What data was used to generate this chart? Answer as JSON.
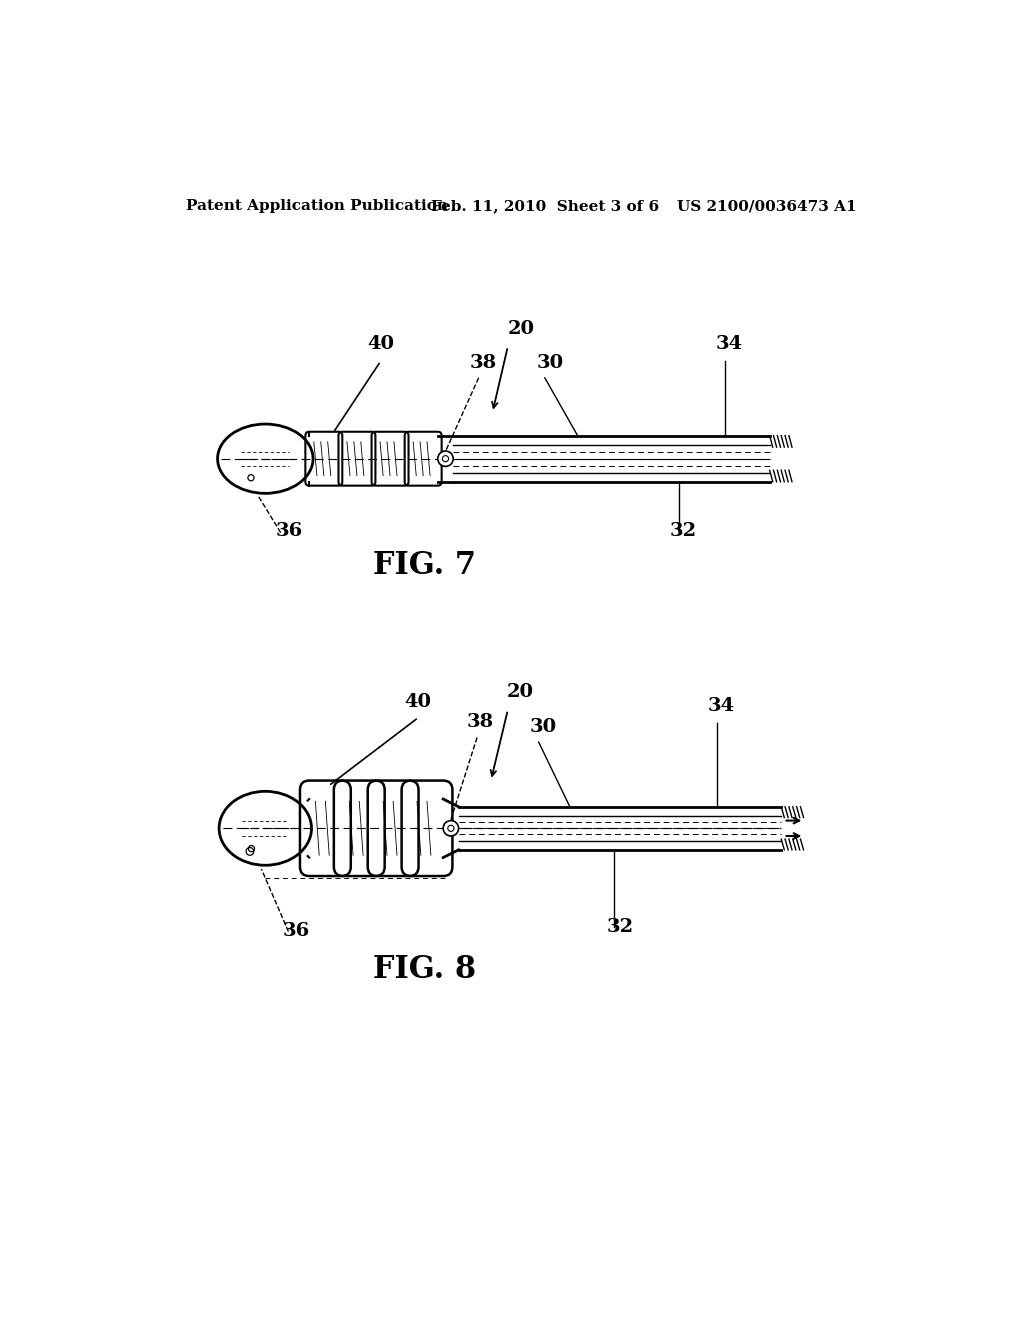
{
  "background_color": "#ffffff",
  "header_left": "Patent Application Publication",
  "header_center": "Feb. 11, 2010  Sheet 3 of 6",
  "header_right": "US 2100/0036473 A1",
  "fig7_label": "FIG. 7",
  "fig8_label": "FIG. 8"
}
